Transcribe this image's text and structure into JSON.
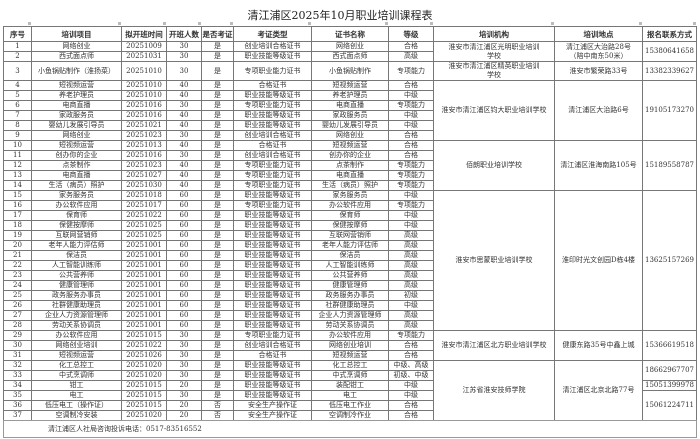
{
  "title": "清江浦区2025年10月职业培训课程表",
  "headers": [
    "序号",
    "培训项目",
    "拟开班时间",
    "开班人数",
    "是否考证",
    "考证类型",
    "证书名称",
    "等级",
    "培训机构",
    "培训地点",
    "报名联系方式"
  ],
  "rows": [
    [
      "1",
      "网络创业",
      "20251009",
      "30",
      "是",
      "创业培训合格证书",
      "网络创业",
      "合格"
    ],
    [
      "2",
      "西式面点师",
      "20251031",
      "30",
      "是",
      "职业技能等级证书",
      "西式面点师",
      "高级"
    ],
    [
      "3",
      "小鱼锅贴制作（淮扬菜）",
      "20251010",
      "30",
      "是",
      "专项职业能力证书",
      "小鱼锅贴制作",
      "专项能力"
    ],
    [
      "4",
      "短视频运营",
      "20251010",
      "40",
      "是",
      "合格证书",
      "短视频运营",
      "合格"
    ],
    [
      "5",
      "养老护理员",
      "20251010",
      "40",
      "是",
      "职业技能等级证书",
      "养老护理员",
      "中级"
    ],
    [
      "6",
      "电商直播",
      "20251016",
      "30",
      "是",
      "专项职业能力证书",
      "电商直播",
      "专项能力"
    ],
    [
      "7",
      "家政服务员",
      "20251016",
      "40",
      "是",
      "职业技能等级证书",
      "家政服务员",
      "中级"
    ],
    [
      "8",
      "婴幼儿发展引导员",
      "20251021",
      "40",
      "是",
      "职业技能等级证书",
      "婴幼儿发展引导员",
      "中级"
    ],
    [
      "9",
      "网络创业",
      "20251023",
      "30",
      "是",
      "创业培训合格证书",
      "网络创业",
      "合格"
    ],
    [
      "10",
      "短视频运营",
      "20251013",
      "40",
      "是",
      "合格证书",
      "短视频运营",
      "合格"
    ],
    [
      "11",
      "创办你的企业",
      "20251016",
      "30",
      "是",
      "创业培训合格证书",
      "创办你的企业",
      "合格"
    ],
    [
      "12",
      "点茶制作",
      "20251023",
      "40",
      "是",
      "专项职业能力证书",
      "点茶制作",
      "专项能力"
    ],
    [
      "13",
      "电商直播",
      "20251027",
      "40",
      "是",
      "专项职业能力证书",
      "电商直播",
      "专项能力"
    ],
    [
      "14",
      "生活（病员）照护",
      "20251030",
      "40",
      "是",
      "专项职业能力证书",
      "生活（病员）照护",
      "专项能力"
    ],
    [
      "15",
      "家务服务员",
      "20251018",
      "60",
      "是",
      "职业技能等级证书",
      "家务服务员",
      "中级"
    ],
    [
      "16",
      "办公软件应用",
      "20251017",
      "60",
      "是",
      "专项职业能力证书",
      "办公软件应用",
      "专项能力"
    ],
    [
      "17",
      "保育师",
      "20251022",
      "60",
      "是",
      "职业技能等级证书",
      "保育师",
      "中级"
    ],
    [
      "18",
      "保健按摩师",
      "20251025",
      "60",
      "是",
      "职业技能等级证书",
      "保健按摩师",
      "中级"
    ],
    [
      "19",
      "互联网营销师",
      "20251025",
      "60",
      "是",
      "职业技能等级证书",
      "互联网营销师",
      "高级"
    ],
    [
      "20",
      "老年人能力评估师",
      "20251001",
      "60",
      "是",
      "职业技能等级证书",
      "老年人能力评估师",
      "高级"
    ],
    [
      "21",
      "保洁员",
      "20251001",
      "60",
      "是",
      "职业技能等级证书",
      "保洁员",
      "高级"
    ],
    [
      "22",
      "人工智能训练师",
      "20251001",
      "60",
      "是",
      "职业技能等级证书",
      "人工智能训练师",
      "高级"
    ],
    [
      "23",
      "公共营养师",
      "20251001",
      "60",
      "是",
      "职业技能等级证书",
      "公共营养师",
      "高级"
    ],
    [
      "24",
      "健康管理师",
      "20251001",
      "60",
      "是",
      "职业技能等级证书",
      "健康管理师",
      "高级"
    ],
    [
      "25",
      "政务服务办事员",
      "20251001",
      "60",
      "是",
      "职业技能等级证书",
      "政务服务办事员",
      "初级"
    ],
    [
      "26",
      "社群健康助理员",
      "20251001",
      "60",
      "是",
      "职业技能等级证书",
      "社群健康助理员",
      "中级"
    ],
    [
      "27",
      "企业人力资源管理师",
      "20251001",
      "60",
      "是",
      "职业技能等级证书",
      "企业人力资源管理师",
      "高级"
    ],
    [
      "28",
      "劳动关系协调员",
      "20251001",
      "60",
      "是",
      "职业技能等级证书",
      "劳动关系协调员",
      "高级"
    ],
    [
      "29",
      "办公软件应用",
      "20251015",
      "30",
      "是",
      "专项职业能力证书",
      "办公软件应用",
      "专项能力"
    ],
    [
      "30",
      "网络创业培训",
      "20251022",
      "30",
      "是",
      "创业培训合格证书",
      "网络创业培训",
      "合格"
    ],
    [
      "31",
      "短视频运营",
      "20251026",
      "30",
      "是",
      "合格证书",
      "短视频运营",
      "合格"
    ],
    [
      "32",
      "化工总控工",
      "20251020",
      "30",
      "是",
      "职业技能等级证书",
      "化工总控工",
      "中级、高级"
    ],
    [
      "33",
      "中式烹调师",
      "20251020",
      "30",
      "是",
      "职业技能等级证书",
      "中式烹调师",
      "初级、中级"
    ],
    [
      "34",
      "钳工",
      "20251015",
      "20",
      "是",
      "职业技能等级证书",
      "装配钳工",
      "中级"
    ],
    [
      "35",
      "电工",
      "20251015",
      "30",
      "是",
      "职业技能等级证书",
      "电工",
      "中级"
    ],
    [
      "36",
      "低压电工（操作证）",
      "20251015",
      "20",
      "否",
      "安全生产操作证",
      "低压电工作业",
      "合格"
    ],
    [
      "37",
      "空调制冷安装",
      "20251020",
      "20",
      "否",
      "安全生产操作证",
      "空调制冷作业",
      "合格"
    ]
  ],
  "institutions": [
    {
      "name": "淮安市清江浦区光明职业培训学校",
      "location": "清江浦区大治路28号（陪中南东50米）",
      "rows": 2,
      "phones": [
        {
          "number": "15380641658",
          "rows": 2
        }
      ]
    },
    {
      "name": "淮安市清江浦区精英职业培训学校",
      "location": "淮安市繁荣路33号",
      "rows": 1,
      "phones": [
        {
          "number": "13382339627",
          "rows": 1
        }
      ]
    },
    {
      "name": "淮安市清江浦区钧大职业培训学校",
      "location": "清江浦区大治路6号",
      "rows": 6,
      "phones": [
        {
          "number": "19105173270",
          "rows": 6
        }
      ]
    },
    {
      "name": "佰朗职业培训学校",
      "location": "清江浦区淮海南路105号",
      "rows": 5,
      "phones": [
        {
          "number": "15189558787",
          "rows": 5
        }
      ]
    },
    {
      "name": "淮安市思蒙职业培训学校",
      "location": "淮印时光文创园D栋4楼",
      "rows": 14,
      "phones": [
        {
          "number": "13625157269",
          "rows": 14
        }
      ]
    },
    {
      "name": "淮安市清江浦区北方职业培训学校",
      "location": "健康东路35号中鑫上城",
      "rows": 3,
      "phones": [
        {
          "number": "15366619518",
          "rows": 3
        }
      ]
    },
    {
      "name": "江苏省淮安技师学院",
      "location": "清江浦区北京北路77号",
      "rows": 6,
      "phones": [
        {
          "number": "18662967707",
          "rows": 2
        },
        {
          "number": "15051399978",
          "rows": 1
        },
        {
          "number": "15061224711",
          "rows": 3
        }
      ]
    }
  ],
  "footer": "清江浦区人社局咨询投诉电话：0517-83516552"
}
